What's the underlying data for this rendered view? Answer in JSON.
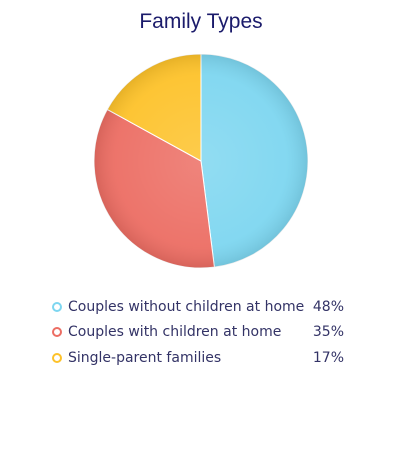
{
  "chart_data": {
    "type": "pie",
    "title": "Family Types",
    "slices": [
      {
        "label": "Couples without children at home",
        "value": 48,
        "value_label": "48%",
        "color": "#7dd6f0"
      },
      {
        "label": "Couples with children at home",
        "value": 35,
        "value_label": "35%",
        "color": "#ec6d63"
      },
      {
        "label": "Single-parent families",
        "value": 17,
        "value_label": "17%",
        "color": "#fdc22a"
      }
    ],
    "legend_position": "bottom"
  }
}
